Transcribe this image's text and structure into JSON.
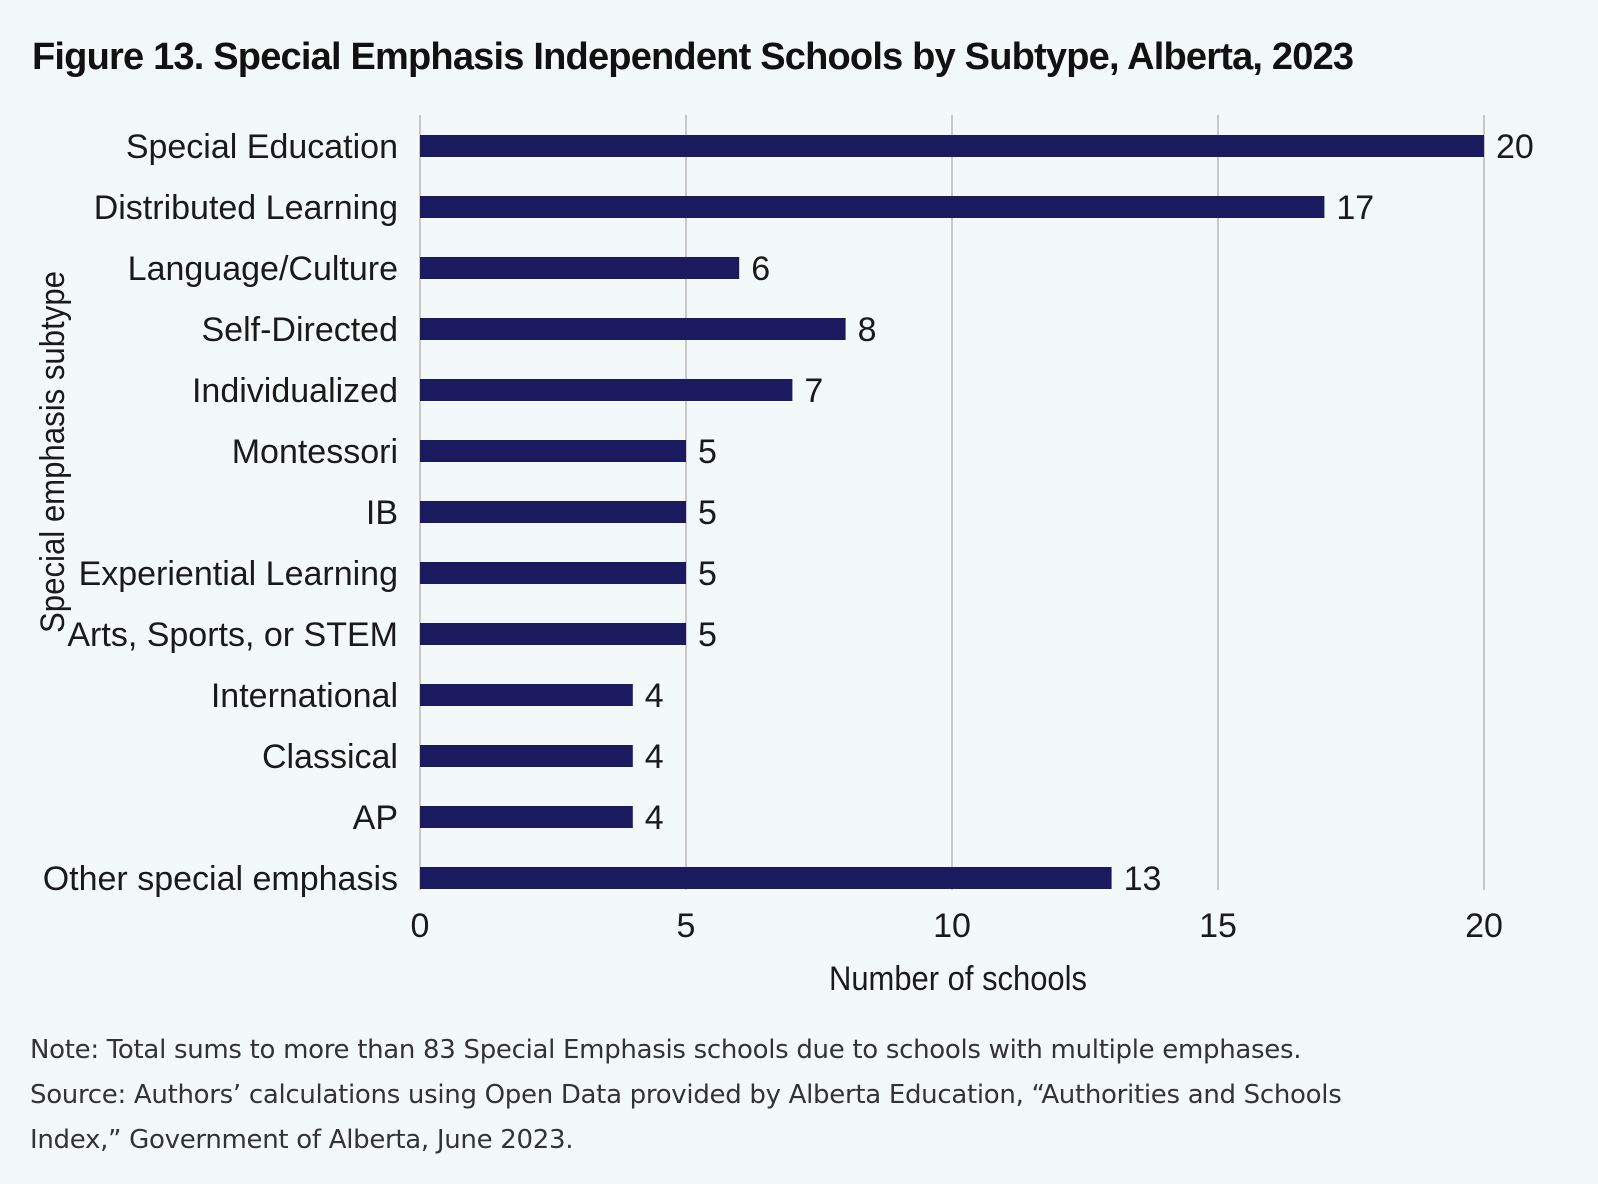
{
  "title": "Figure 13. Special Emphasis Independent Schools by Subtype, Alberta, 2023",
  "colors": {
    "background": "#f3f9f8",
    "bar": "#1c1a5e",
    "gridline": "#c8c8c8"
  },
  "chart_data": {
    "type": "bar",
    "orientation": "horizontal",
    "title": "Figure 13. Special Emphasis Independent Schools by Subtype, Alberta, 2023",
    "xlabel": "Number of schools",
    "ylabel": "Special emphasis subtype",
    "xlim": [
      0,
      20
    ],
    "xticks": [
      0,
      5,
      10,
      15,
      20
    ],
    "grid": true,
    "legend": "none",
    "categories": [
      "Special Education",
      "Distributed Learning",
      "Language/Culture",
      "Self-Directed",
      "Individualized",
      "Montessori",
      "IB",
      "Experiential Learning",
      "Arts, Sports, or STEM",
      "International",
      "Classical",
      "AP",
      "Other special emphasis"
    ],
    "values": [
      20,
      17,
      6,
      8,
      7,
      5,
      5,
      5,
      5,
      4,
      4,
      4,
      13
    ],
    "data_labels": [
      "20",
      "17",
      "6",
      "8",
      "7",
      "5",
      "5",
      "5",
      "5",
      "4",
      "4",
      "4",
      "13"
    ]
  },
  "notes": {
    "note": "Note: Total sums to more than 83 Special Emphasis schools due to schools with multiple emphases.",
    "source_line1": "Source: Authors’ calculations using Open Data provided by Alberta Education, “Authorities and Schools",
    "source_line2": "Index,” Government of Alberta, June 2023."
  }
}
